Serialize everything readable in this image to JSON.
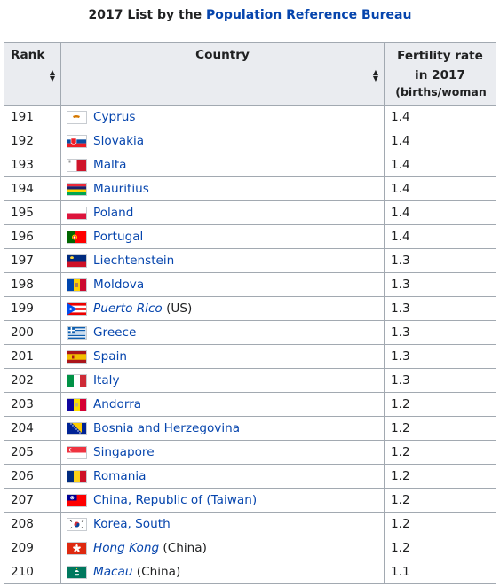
{
  "caption": {
    "prefix": "2017 List by the ",
    "link": "Population Reference Bureau"
  },
  "headers": {
    "rank": "Rank",
    "country": "Country",
    "fertility_line1": "Fertility rate",
    "fertility_line2": "in 2017",
    "fertility_line3": "(births/woman"
  },
  "rows": [
    {
      "rank": "191",
      "country": "Cyprus",
      "note": "",
      "italic": false,
      "flag": "cyprus-flag-icon",
      "rate": "1.4"
    },
    {
      "rank": "192",
      "country": "Slovakia",
      "note": "",
      "italic": false,
      "flag": "slovakia-flag-icon",
      "rate": "1.4"
    },
    {
      "rank": "193",
      "country": "Malta",
      "note": "",
      "italic": false,
      "flag": "malta-flag-icon",
      "rate": "1.4"
    },
    {
      "rank": "194",
      "country": "Mauritius",
      "note": "",
      "italic": false,
      "flag": "mauritius-flag-icon",
      "rate": "1.4"
    },
    {
      "rank": "195",
      "country": "Poland",
      "note": "",
      "italic": false,
      "flag": "poland-flag-icon",
      "rate": "1.4"
    },
    {
      "rank": "196",
      "country": "Portugal",
      "note": "",
      "italic": false,
      "flag": "portugal-flag-icon",
      "rate": "1.4"
    },
    {
      "rank": "197",
      "country": "Liechtenstein",
      "note": "",
      "italic": false,
      "flag": "liechtenstein-flag-icon",
      "rate": "1.3"
    },
    {
      "rank": "198",
      "country": "Moldova",
      "note": "",
      "italic": false,
      "flag": "moldova-flag-icon",
      "rate": "1.3"
    },
    {
      "rank": "199",
      "country": "Puerto Rico",
      "note": " (US)",
      "italic": true,
      "flag": "puerto-rico-flag-icon",
      "rate": "1.3"
    },
    {
      "rank": "200",
      "country": "Greece",
      "note": "",
      "italic": false,
      "flag": "greece-flag-icon",
      "rate": "1.3"
    },
    {
      "rank": "201",
      "country": "Spain",
      "note": "",
      "italic": false,
      "flag": "spain-flag-icon",
      "rate": "1.3"
    },
    {
      "rank": "202",
      "country": "Italy",
      "note": "",
      "italic": false,
      "flag": "italy-flag-icon",
      "rate": "1.3"
    },
    {
      "rank": "203",
      "country": "Andorra",
      "note": "",
      "italic": false,
      "flag": "andorra-flag-icon",
      "rate": "1.2"
    },
    {
      "rank": "204",
      "country": "Bosnia and Herzegovina",
      "note": "",
      "italic": false,
      "flag": "bosnia-flag-icon",
      "rate": "1.2"
    },
    {
      "rank": "205",
      "country": "Singapore",
      "note": "",
      "italic": false,
      "flag": "singapore-flag-icon",
      "rate": "1.2"
    },
    {
      "rank": "206",
      "country": "Romania",
      "note": "",
      "italic": false,
      "flag": "romania-flag-icon",
      "rate": "1.2"
    },
    {
      "rank": "207",
      "country": "China, Republic of (Taiwan)",
      "note": "",
      "italic": false,
      "flag": "taiwan-flag-icon",
      "rate": "1.2"
    },
    {
      "rank": "208",
      "country": "Korea, South",
      "note": "",
      "italic": false,
      "flag": "south-korea-flag-icon",
      "rate": "1.2"
    },
    {
      "rank": "209",
      "country": "Hong Kong",
      "note": " (China)",
      "italic": true,
      "flag": "hong-kong-flag-icon",
      "rate": "1.2"
    },
    {
      "rank": "210",
      "country": "Macau",
      "note": " (China)",
      "italic": true,
      "flag": "macau-flag-icon",
      "rate": "1.1"
    }
  ],
  "colors": {
    "link": "#0645ad",
    "header_bg": "#eaecf0",
    "border": "#a2a9b1"
  }
}
